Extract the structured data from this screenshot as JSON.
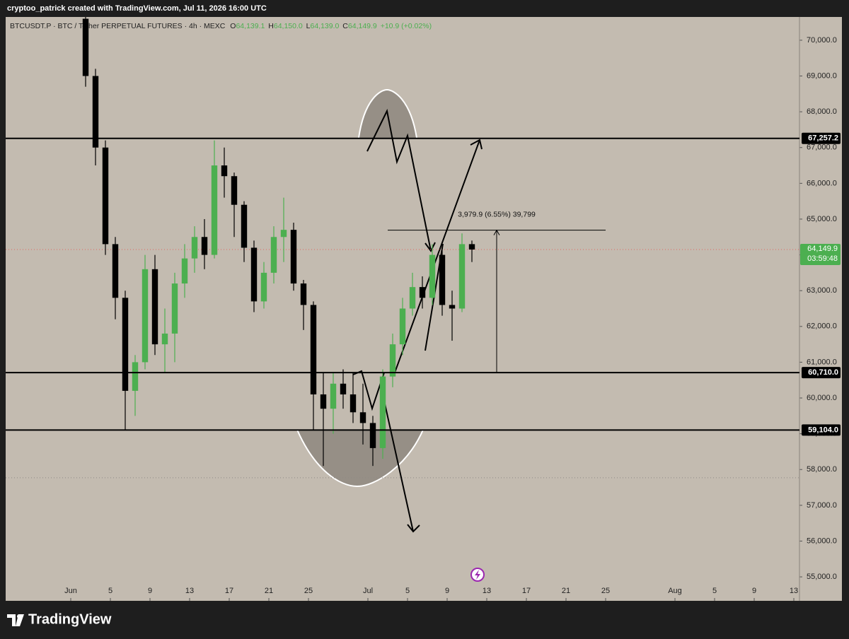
{
  "header": {
    "credit": "cryptoo_patrick created with TradingView.com, Jul 11, 2026 16:00 UTC"
  },
  "chart_data": {
    "type": "candlestick",
    "symbol": "BTCUSDT.P · BTC / Tether PERPETUAL FUTURES · 4h · MEXC",
    "ohlc_legend": [
      {
        "key": "O",
        "value": "64,139.1"
      },
      {
        "key": "H",
        "value": "64,150.0"
      },
      {
        "key": "L",
        "value": "64,139.0"
      },
      {
        "key": "C",
        "value": "64,149.9"
      }
    ],
    "change": "+10.9 (+0.02%)",
    "x": [
      "Jun 2",
      "Jun 3",
      "Jun 4",
      "Jun 5",
      "Jun 6",
      "Jun 7",
      "Jun 8",
      "Jun 9",
      "Jun 10",
      "Jun 11",
      "Jun 12",
      "Jun 13",
      "Jun 14",
      "Jun 15",
      "Jun 16",
      "Jun 17",
      "Jun 18",
      "Jun 19",
      "Jun 20",
      "Jun 21",
      "Jun 22",
      "Jun 23",
      "Jun 24",
      "Jun 25",
      "Jun 26",
      "Jun 27",
      "Jun 28",
      "Jun 29",
      "Jun 30",
      "Jul 1",
      "Jul 2",
      "Jul 3",
      "Jul 4",
      "Jul 5",
      "Jul 6",
      "Jul 7",
      "Jul 8",
      "Jul 9",
      "Jul 10",
      "Jul 11"
    ],
    "open": [
      70600,
      69000,
      67000,
      64300,
      62800,
      60200,
      61000,
      63600,
      61500,
      61800,
      63200,
      63900,
      64500,
      64000,
      66500,
      66200,
      65400,
      64200,
      62700,
      63500,
      64500,
      64700,
      63200,
      62600,
      60100,
      59700,
      60400,
      60100,
      59600,
      59300,
      58600,
      60600,
      61500,
      62500,
      63100,
      62800,
      64000,
      62600,
      62500,
      64300
    ],
    "high": [
      70650,
      69200,
      67200,
      64500,
      63000,
      61200,
      64000,
      64000,
      62500,
      63500,
      64300,
      64800,
      65000,
      67200,
      67000,
      66300,
      65500,
      64400,
      63800,
      64800,
      65600,
      64900,
      63300,
      62700,
      60700,
      60700,
      60800,
      60700,
      60400,
      59500,
      60800,
      61800,
      62800,
      63500,
      63400,
      64300,
      64200,
      63000,
      64600,
      64400
    ],
    "low": [
      68700,
      66500,
      64000,
      62200,
      59100,
      59500,
      60800,
      61200,
      60700,
      61000,
      62800,
      63500,
      63600,
      63900,
      65600,
      64500,
      63800,
      62400,
      62500,
      63200,
      63800,
      63000,
      61900,
      59100,
      58100,
      59000,
      59700,
      59300,
      58700,
      58100,
      58300,
      60300,
      61200,
      62300,
      62500,
      62600,
      62300,
      61600,
      62400,
      63800
    ],
    "close": [
      69000,
      67000,
      64300,
      62800,
      60200,
      61000,
      63600,
      61500,
      61800,
      63200,
      63900,
      64500,
      64000,
      66500,
      66200,
      65400,
      64200,
      62700,
      63500,
      64500,
      64700,
      63200,
      62600,
      60100,
      59700,
      60400,
      60100,
      59600,
      59300,
      58600,
      60600,
      61500,
      62500,
      63100,
      62800,
      64000,
      62600,
      62500,
      64300,
      64149.9
    ],
    "up_color": "#4caf50",
    "down_color": "#000000",
    "xlim": [
      "May 26",
      "Aug 13"
    ],
    "xticks": [
      {
        "value": "Jun 1",
        "label": "Jun"
      },
      {
        "value": "Jun 5",
        "label": "5"
      },
      {
        "value": "Jun 9",
        "label": "9"
      },
      {
        "value": "Jun 13",
        "label": "13"
      },
      {
        "value": "Jun 17",
        "label": "17"
      },
      {
        "value": "Jun 21",
        "label": "21"
      },
      {
        "value": "Jun 25",
        "label": "25"
      },
      {
        "value": "Jul 1",
        "label": "Jul"
      },
      {
        "value": "Jul 5",
        "label": "5"
      },
      {
        "value": "Jul 9",
        "label": "9"
      },
      {
        "value": "Jul 13",
        "label": "13"
      },
      {
        "value": "Jul 17",
        "label": "17"
      },
      {
        "value": "Jul 21",
        "label": "21"
      },
      {
        "value": "Jul 25",
        "label": "25"
      },
      {
        "value": "Aug 1",
        "label": "Aug"
      },
      {
        "value": "Aug 5",
        "label": "5"
      },
      {
        "value": "Aug 9",
        "label": "9"
      },
      {
        "value": "Aug 13",
        "label": "13"
      }
    ],
    "ylim": [
      54330,
      70650
    ],
    "yticks": [
      {
        "value": 55000,
        "label": "55,000.0"
      },
      {
        "value": 56000,
        "label": "56,000.0"
      },
      {
        "value": 57000,
        "label": "57,000.0"
      },
      {
        "value": 58000,
        "label": "58,000.0"
      },
      {
        "value": 59000,
        "label": "59,000.0"
      },
      {
        "value": 60000,
        "label": "60,000.0"
      },
      {
        "value": 61000,
        "label": "61,000.0"
      },
      {
        "value": 62000,
        "label": "62,000.0"
      },
      {
        "value": 63000,
        "label": "63,000.0"
      },
      {
        "value": 64000,
        "label": "64,000.0"
      },
      {
        "value": 65000,
        "label": "65,000.0"
      },
      {
        "value": 66000,
        "label": "66,000.0"
      },
      {
        "value": 67000,
        "label": "67,000.0"
      },
      {
        "value": 68000,
        "label": "68,000.0"
      },
      {
        "value": 69000,
        "label": "69,000.0"
      },
      {
        "value": 70000,
        "label": "70,000.0"
      }
    ],
    "grid": false,
    "levels": [
      {
        "value": 67257.2,
        "label": "67,257.2"
      },
      {
        "value": 60710.0,
        "label": "60,710.0"
      },
      {
        "value": 59104.0,
        "label": "59,104.0"
      }
    ],
    "reference_line": 57770,
    "last_price": {
      "value": 64149.9,
      "label": "64,149.9",
      "countdown": "03:59:48"
    },
    "measure": {
      "from": 60710,
      "to": 64690,
      "start": "Jul 3",
      "end": "Jul 25",
      "at": "Jul 14",
      "text": "3,979.9 (6.55%) 39,799"
    }
  },
  "footer": {
    "brand": "TradingView"
  }
}
